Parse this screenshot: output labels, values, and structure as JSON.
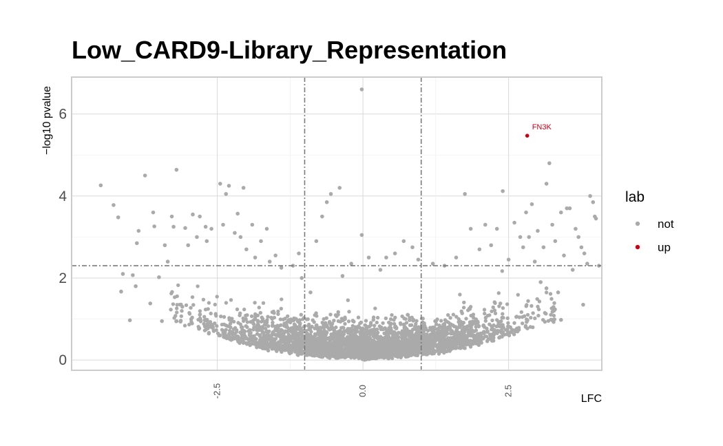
{
  "chart_data": {
    "type": "scatter",
    "title": "Low_CARD9-Library_Representation",
    "xlabel": "LFC",
    "ylabel": "−log10 pvalue",
    "xlim": [
      -5.0,
      4.1
    ],
    "ylim": [
      -0.25,
      6.9
    ],
    "x_ticks": [
      -2.5,
      0.0,
      2.5
    ],
    "x_tick_labels": [
      "-2.5",
      "0.0",
      "2.5"
    ],
    "y_ticks": [
      0,
      2,
      4,
      6
    ],
    "y_tick_labels": [
      "0",
      "2",
      "4",
      "6"
    ],
    "grid": true,
    "thresholds": {
      "lfc_left": -1,
      "lfc_right": 1,
      "pvalue_line": 2.3
    },
    "legend": {
      "title": "lab",
      "position": "right",
      "entries": [
        {
          "label": "not",
          "color": "#aaaaaa"
        },
        {
          "label": "up",
          "color": "#cc0014"
        }
      ]
    },
    "series": [
      {
        "name": "not",
        "color": "#aaaaaa",
        "points": [
          [
            -4.5,
            4.26
          ],
          [
            -4.28,
            3.78
          ],
          [
            -4.2,
            3.48
          ],
          [
            -4.15,
            1.67
          ],
          [
            -4.12,
            2.1
          ],
          [
            -4.0,
            0.97
          ],
          [
            -3.95,
            2.07
          ],
          [
            -3.9,
            1.8
          ],
          [
            -3.88,
            2.85
          ],
          [
            -3.85,
            3.15
          ],
          [
            -3.74,
            4.5
          ],
          [
            -3.65,
            1.38
          ],
          [
            -3.6,
            3.6
          ],
          [
            -3.58,
            3.26
          ],
          [
            -3.5,
            2.02
          ],
          [
            -3.45,
            0.95
          ],
          [
            -3.4,
            2.8
          ],
          [
            -3.35,
            2.4
          ],
          [
            -3.28,
            3.5
          ],
          [
            -3.25,
            3.25
          ],
          [
            -3.2,
            4.64
          ],
          [
            -3.1,
            1.3
          ],
          [
            -3.05,
            3.22
          ],
          [
            -3.0,
            2.8
          ],
          [
            -2.92,
            3.55
          ],
          [
            -2.85,
            3.0
          ],
          [
            -2.8,
            3.5
          ],
          [
            -2.7,
            3.25
          ],
          [
            -2.68,
            2.9
          ],
          [
            -2.6,
            3.2
          ],
          [
            -2.45,
            4.3
          ],
          [
            -2.4,
            3.3
          ],
          [
            -2.35,
            4.05
          ],
          [
            -2.3,
            4.25
          ],
          [
            -2.2,
            3.1
          ],
          [
            -2.15,
            3.57
          ],
          [
            -2.1,
            3.0
          ],
          [
            -2.05,
            4.2
          ],
          [
            -2.0,
            2.7
          ],
          [
            -1.9,
            3.3
          ],
          [
            -1.85,
            2.5
          ],
          [
            -1.75,
            2.9
          ],
          [
            -1.65,
            3.2
          ],
          [
            -1.6,
            2.4
          ],
          [
            -1.5,
            2.55
          ],
          [
            -1.4,
            2.25
          ],
          [
            -1.2,
            2.3
          ],
          [
            -1.1,
            2.6
          ],
          [
            -1.05,
            2.0
          ],
          [
            -0.9,
            1.65
          ],
          [
            -0.8,
            2.9
          ],
          [
            -0.7,
            3.5
          ],
          [
            -0.62,
            3.85
          ],
          [
            -0.55,
            4.05
          ],
          [
            -0.4,
            4.2
          ],
          [
            -0.35,
            2.05
          ],
          [
            -0.2,
            2.35
          ],
          [
            -0.02,
            6.6
          ],
          [
            -0.02,
            3.05
          ],
          [
            0.1,
            2.5
          ],
          [
            0.3,
            2.2
          ],
          [
            0.4,
            2.5
          ],
          [
            0.55,
            2.6
          ],
          [
            0.7,
            2.9
          ],
          [
            0.85,
            2.75
          ],
          [
            0.95,
            2.45
          ],
          [
            1.2,
            2.35
          ],
          [
            1.4,
            2.3
          ],
          [
            1.6,
            2.5
          ],
          [
            1.75,
            4.05
          ],
          [
            1.85,
            3.2
          ],
          [
            2.0,
            2.7
          ],
          [
            2.1,
            3.3
          ],
          [
            2.2,
            2.8
          ],
          [
            2.3,
            3.2
          ],
          [
            2.4,
            4.12
          ],
          [
            2.5,
            2.45
          ],
          [
            2.6,
            3.35
          ],
          [
            2.7,
            3.0
          ],
          [
            2.75,
            2.75
          ],
          [
            2.8,
            3.6
          ],
          [
            2.85,
            3.0
          ],
          [
            2.9,
            3.8
          ],
          [
            2.95,
            2.4
          ],
          [
            3.0,
            3.15
          ],
          [
            3.05,
            1.9
          ],
          [
            3.1,
            2.75
          ],
          [
            3.15,
            4.3
          ],
          [
            3.2,
            4.8
          ],
          [
            3.25,
            3.3
          ],
          [
            3.3,
            2.9
          ],
          [
            3.35,
            1.65
          ],
          [
            3.4,
            3.6
          ],
          [
            3.45,
            2.55
          ],
          [
            3.5,
            3.7
          ],
          [
            3.55,
            3.7
          ],
          [
            3.6,
            2.2
          ],
          [
            3.65,
            3.2
          ],
          [
            3.7,
            3.0
          ],
          [
            3.75,
            2.75
          ],
          [
            3.8,
            2.6
          ],
          [
            3.85,
            2.35
          ],
          [
            3.9,
            4.0
          ],
          [
            3.95,
            3.85
          ],
          [
            4.0,
            3.45
          ],
          [
            3.98,
            3.5
          ],
          [
            4.05,
            2.3
          ],
          [
            3.78,
            1.35
          ],
          [
            3.4,
            0.98
          ],
          [
            3.15,
            1.75
          ]
        ]
      },
      {
        "name": "up",
        "color": "#cc0014",
        "points": [
          [
            2.82,
            5.47
          ]
        ]
      }
    ],
    "annotations": [
      {
        "text": "FN3K",
        "x": 2.82,
        "y": 5.47,
        "color": "#cc0014"
      }
    ]
  }
}
